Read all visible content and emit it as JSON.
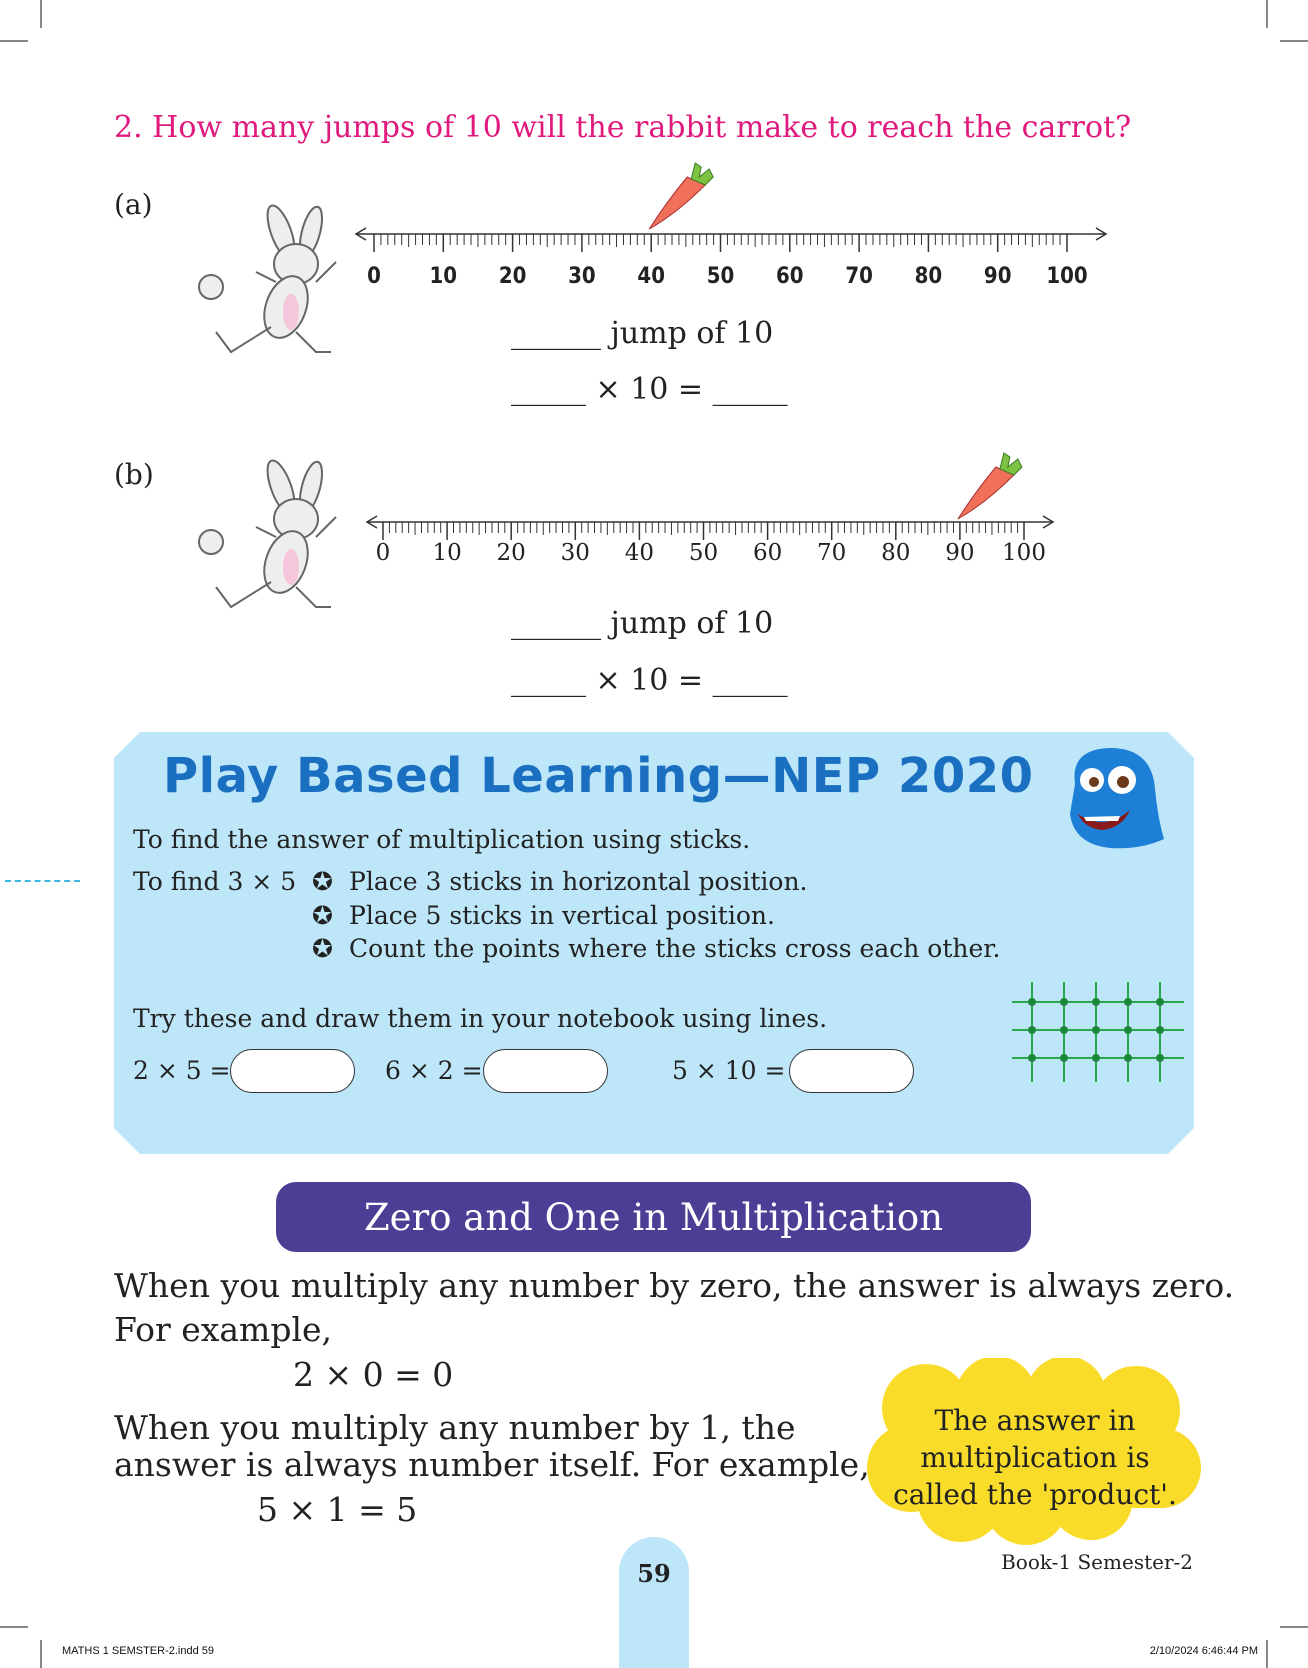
{
  "question": "2. How many jumps of 10 will the rabbit make to reach the carrot?",
  "parts": [
    {
      "label": "(a)",
      "ticks": [
        "0",
        "10",
        "20",
        "30",
        "40",
        "50",
        "60",
        "70",
        "80",
        "90",
        "100"
      ],
      "carrot_at": 40,
      "jump_text": "______ jump of 10",
      "equation": "_____ ×  10 = _____"
    },
    {
      "label": "(b)",
      "ticks": [
        "0",
        "10",
        "20",
        "30",
        "40",
        "50",
        "60",
        "70",
        "80",
        "90",
        "100"
      ],
      "carrot_at": 90,
      "jump_text": "______ jump of 10",
      "equation": "_____ ×  10 = _____"
    }
  ],
  "play": {
    "title": "Play Based Learning—NEP 2020",
    "intro": "To find the answer of multiplication using sticks.",
    "find_label": "To find 3 × 5",
    "steps": [
      "Place 3 sticks in horizontal position.",
      "Place 5 sticks in vertical position.",
      "Count the points where the sticks cross each other."
    ],
    "try_text": "Try these and draw them in your notebook using lines.",
    "exercises": [
      "2 × 5 =",
      "6 × 2 =",
      "5 × 10 ="
    ],
    "box_color": "#bde6f8",
    "title_color": "#1a6fc0"
  },
  "banner": "Zero and One in Multiplication",
  "zero_text": "When you multiply any number by zero, the answer is always zero.",
  "for_example": "For example,",
  "zero_example": "2 × 0 = 0",
  "one_text_1": "When you multiply any number by 1, the",
  "one_text_2": "answer is always number itself. For example,",
  "one_example": "5 × 1 = 5",
  "cloud_lines": [
    "The answer in",
    "multiplication is",
    "called the 'product'."
  ],
  "page_number": "59",
  "book": "Book-1 Semester-2",
  "footer_left": "MATHS 1 SEMSTER-2.indd   59",
  "footer_right": "2/10/2024   6:46:44 PM"
}
